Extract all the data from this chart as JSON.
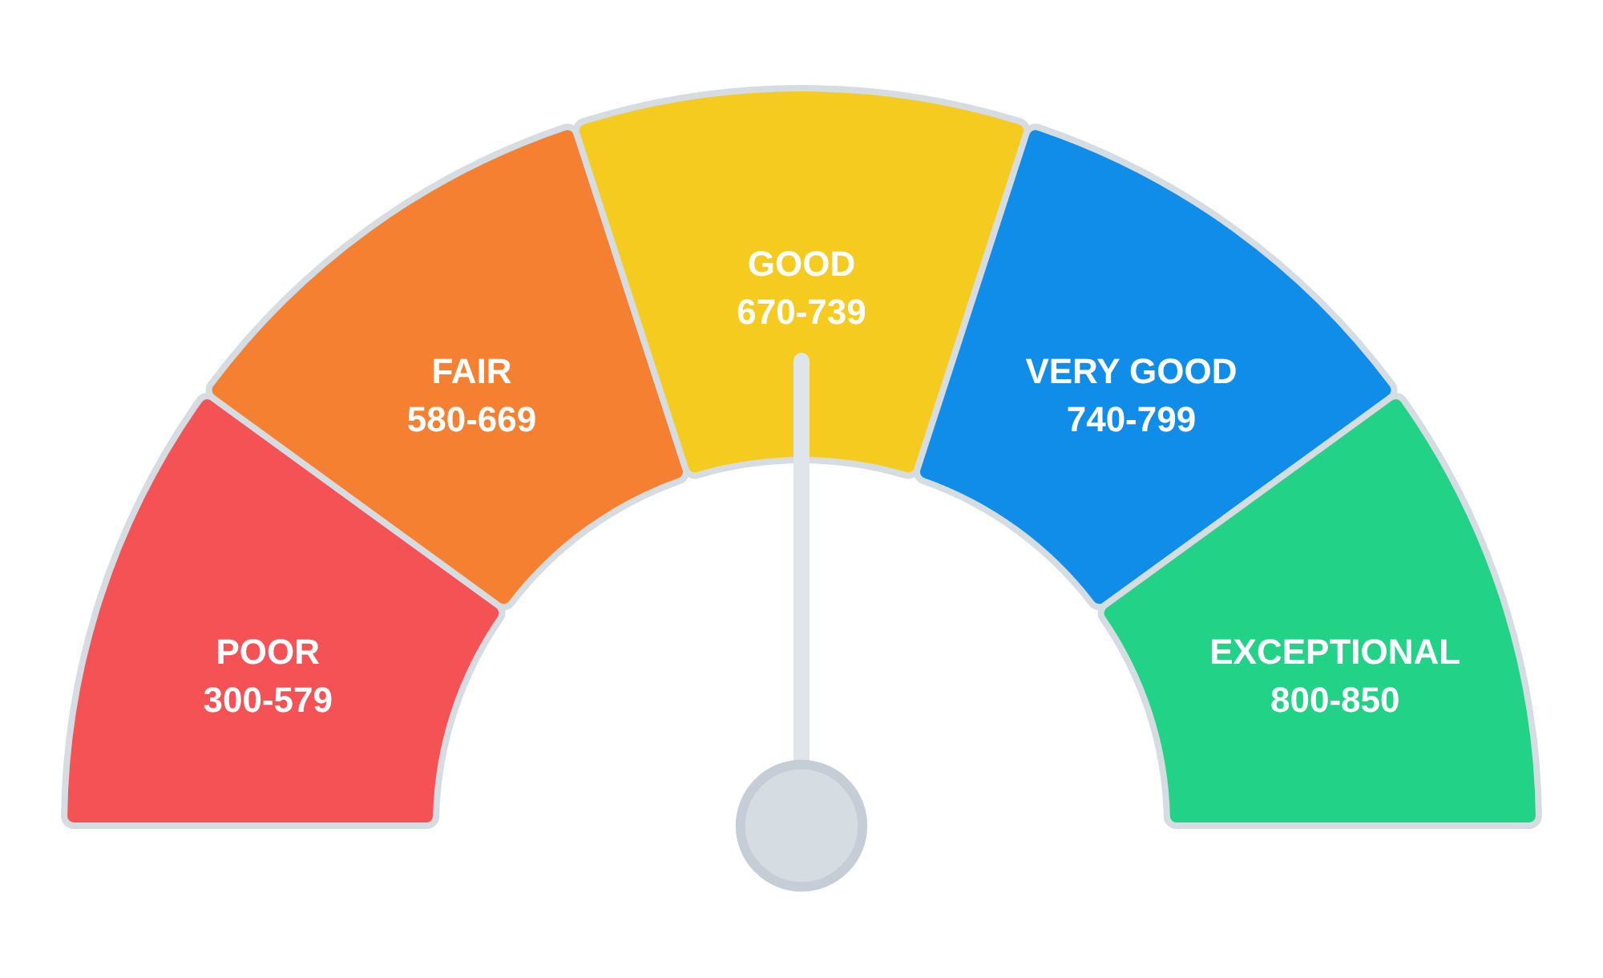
{
  "chart_data": {
    "type": "donut",
    "categories": [
      "POOR 300-579",
      "FAIR 580-669",
      "GOOD 670-739",
      "VERY GOOD 740-799",
      "EXCEPTIONAL 800-850"
    ],
    "values": [
      20,
      20,
      20,
      20,
      20
    ],
    "colors": [
      "#f45255",
      "#f58032",
      "#f5cb1f",
      "#108de9",
      "#22d286"
    ],
    "needle": "GOOD 670-739"
  }
}
